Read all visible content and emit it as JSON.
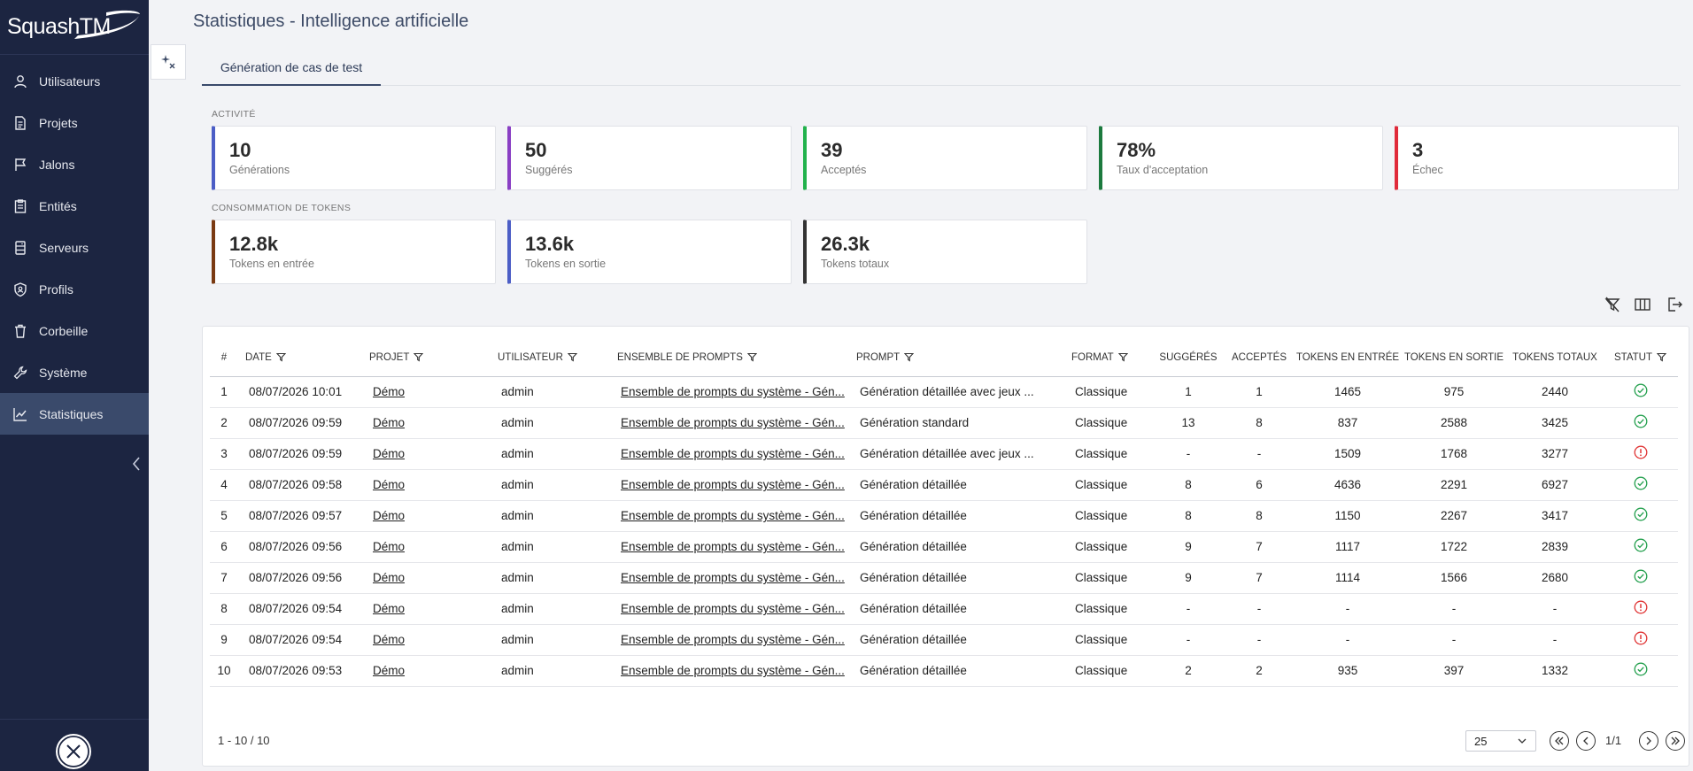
{
  "app": {
    "logo": "SquashTM"
  },
  "sidebar": {
    "items": [
      {
        "label": "Utilisateurs",
        "icon": "user-icon"
      },
      {
        "label": "Projets",
        "icon": "document-icon"
      },
      {
        "label": "Jalons",
        "icon": "flag-icon"
      },
      {
        "label": "Entités",
        "icon": "clipboard-icon"
      },
      {
        "label": "Serveurs",
        "icon": "server-icon"
      },
      {
        "label": "Profils",
        "icon": "shield-icon"
      },
      {
        "label": "Corbeille",
        "icon": "trash-icon"
      },
      {
        "label": "Système",
        "icon": "wrench-icon"
      },
      {
        "label": "Statistiques",
        "icon": "chart-icon",
        "active": true
      }
    ]
  },
  "page": {
    "title": "Statistiques - Intelligence artificielle"
  },
  "tabs": [
    {
      "label": "Génération de cas de test",
      "active": true
    }
  ],
  "activity": {
    "label": "ACTIVITÉ",
    "cards": [
      {
        "value": "10",
        "label": "Générations",
        "color": "#4c5ec6"
      },
      {
        "value": "50",
        "label": "Suggérés",
        "color": "#8a3fc4"
      },
      {
        "value": "39",
        "label": "Acceptés",
        "color": "#22b24c"
      },
      {
        "value": "78%",
        "label": "Taux d'acceptation",
        "color": "#1c7a3e"
      },
      {
        "value": "3",
        "label": "Échec",
        "color": "#e02a3a"
      }
    ]
  },
  "tokens": {
    "label": "CONSOMMATION DE TOKENS",
    "cards": [
      {
        "value": "12.8k",
        "label": "Tokens en entrée",
        "color": "#7a3a12"
      },
      {
        "value": "13.6k",
        "label": "Tokens en sortie",
        "color": "#4c5ec6"
      },
      {
        "value": "26.3k",
        "label": "Tokens totaux",
        "color": "#333333"
      }
    ]
  },
  "table": {
    "columns": [
      "#",
      "DATE",
      "PROJET",
      "UTILISATEUR",
      "ENSEMBLE DE PROMPTS",
      "PROMPT",
      "FORMAT",
      "SUGGÉRÉS",
      "ACCEPTÉS",
      "TOKENS EN ENTRÉE",
      "TOKENS EN SORTIE",
      "TOKENS TOTAUX",
      "STATUT"
    ],
    "rows": [
      [
        "1",
        "08/07/2026 10:01",
        "Démo",
        "admin",
        "Ensemble de prompts du système - Gén...",
        "Génération détaillée avec jeux ...",
        "Classique",
        "1",
        "1",
        "1465",
        "975",
        "2440",
        "ok"
      ],
      [
        "2",
        "08/07/2026 09:59",
        "Démo",
        "admin",
        "Ensemble de prompts du système - Gén...",
        "Génération standard",
        "Classique",
        "13",
        "8",
        "837",
        "2588",
        "3425",
        "ok"
      ],
      [
        "3",
        "08/07/2026 09:59",
        "Démo",
        "admin",
        "Ensemble de prompts du système - Gén...",
        "Génération détaillée avec jeux ...",
        "Classique",
        "-",
        "-",
        "1509",
        "1768",
        "3277",
        "error"
      ],
      [
        "4",
        "08/07/2026 09:58",
        "Démo",
        "admin",
        "Ensemble de prompts du système - Gén...",
        "Génération détaillée",
        "Classique",
        "8",
        "6",
        "4636",
        "2291",
        "6927",
        "ok"
      ],
      [
        "5",
        "08/07/2026 09:57",
        "Démo",
        "admin",
        "Ensemble de prompts du système - Gén...",
        "Génération détaillée",
        "Classique",
        "8",
        "8",
        "1150",
        "2267",
        "3417",
        "ok"
      ],
      [
        "6",
        "08/07/2026 09:56",
        "Démo",
        "admin",
        "Ensemble de prompts du système - Gén...",
        "Génération détaillée",
        "Classique",
        "9",
        "7",
        "1117",
        "1722",
        "2839",
        "ok"
      ],
      [
        "7",
        "08/07/2026 09:56",
        "Démo",
        "admin",
        "Ensemble de prompts du système - Gén...",
        "Génération détaillée",
        "Classique",
        "9",
        "7",
        "1114",
        "1566",
        "2680",
        "ok"
      ],
      [
        "8",
        "08/07/2026 09:54",
        "Démo",
        "admin",
        "Ensemble de prompts du système - Gén...",
        "Génération détaillée",
        "Classique",
        "-",
        "-",
        "-",
        "-",
        "-",
        "error"
      ],
      [
        "9",
        "08/07/2026 09:54",
        "Démo",
        "admin",
        "Ensemble de prompts du système - Gén...",
        "Génération détaillée",
        "Classique",
        "-",
        "-",
        "-",
        "-",
        "-",
        "error"
      ],
      [
        "10",
        "08/07/2026 09:53",
        "Démo",
        "admin",
        "Ensemble de prompts du système - Gén...",
        "Génération détaillée",
        "Classique",
        "2",
        "2",
        "935",
        "397",
        "1332",
        "ok"
      ]
    ]
  },
  "pager": {
    "count": "1 - 10 / 10",
    "page_size": "25",
    "page": "1/1"
  }
}
